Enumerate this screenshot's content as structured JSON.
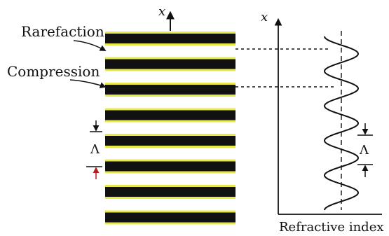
{
  "labels": {
    "rarefaction": "Rarefaction",
    "compression": "Compression",
    "axis_x_left": "x",
    "axis_x_right": "x",
    "period_left": "Λ",
    "period_right": "Λ",
    "xlabel": "Refractive index"
  },
  "colors": {
    "dark_band": "#111111",
    "light_band": "#e8e84a",
    "ink": "#111111",
    "accent_arrow": "#b02020"
  },
  "bands": {
    "count": 8
  },
  "profile": {
    "cycles": 5
  }
}
